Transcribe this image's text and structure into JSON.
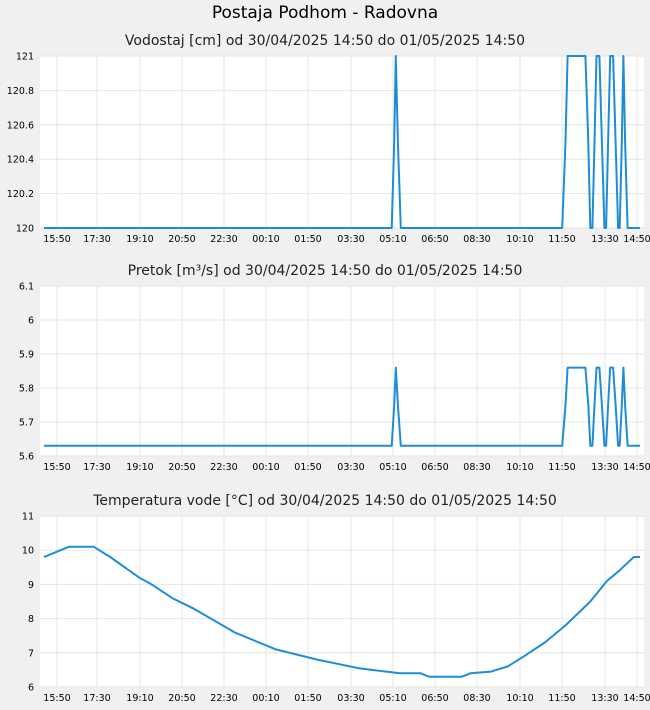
{
  "page_title": "Postaja Podhom - Radovna",
  "chart_data": [
    {
      "type": "line",
      "title": "Vodostaj [cm] od 30/04/2025 14:50 do 01/05/2025 14:50",
      "x_start": "30/04/2025 14:50",
      "x_end": "01/05/2025 14:50",
      "xticks": [
        "15:50",
        "17:30",
        "19:10",
        "20:50",
        "22:30",
        "00:10",
        "01:50",
        "03:30",
        "05:10",
        "06:50",
        "08:30",
        "10:10",
        "11:50",
        "13:30",
        "14:50"
      ],
      "yticks": [
        "120",
        "120.2",
        "120.4",
        "120.6",
        "120.8",
        "121"
      ],
      "ylim": [
        120,
        121
      ],
      "grid": true,
      "color": "#1f8dd6",
      "series": [
        {
          "points": [
            [
              "30/04/2025 14:50",
              120
            ],
            [
              "01/05/2025 04:50",
              120
            ],
            [
              "01/05/2025 04:56",
              120.5
            ],
            [
              "01/05/2025 05:00",
              121
            ],
            [
              "01/05/2025 05:05",
              120.5
            ],
            [
              "01/05/2025 05:12",
              120
            ],
            [
              "01/05/2025 11:42",
              120
            ],
            [
              "01/05/2025 11:50",
              120.5
            ],
            [
              "01/05/2025 11:55",
              121
            ],
            [
              "01/05/2025 12:38",
              121
            ],
            [
              "01/05/2025 12:45",
              120.5
            ],
            [
              "01/05/2025 12:50",
              120
            ],
            [
              "01/05/2025 12:55",
              120
            ],
            [
              "01/05/2025 13:00",
              120.5
            ],
            [
              "01/05/2025 13:05",
              121
            ],
            [
              "01/05/2025 13:12",
              121
            ],
            [
              "01/05/2025 13:18",
              120.5
            ],
            [
              "01/05/2025 13:24",
              120
            ],
            [
              "01/05/2025 13:28",
              120
            ],
            [
              "01/05/2025 13:33",
              120.5
            ],
            [
              "01/05/2025 13:38",
              121
            ],
            [
              "01/05/2025 13:45",
              121
            ],
            [
              "01/05/2025 13:51",
              120.5
            ],
            [
              "01/05/2025 13:57",
              120
            ],
            [
              "01/05/2025 14:01",
              120
            ],
            [
              "01/05/2025 14:06",
              120.5
            ],
            [
              "01/05/2025 14:10",
              121
            ],
            [
              "01/05/2025 14:14",
              120.5
            ],
            [
              "01/05/2025 14:20",
              120
            ],
            [
              "01/05/2025 14:50",
              120
            ]
          ]
        }
      ]
    },
    {
      "type": "line",
      "title": "Pretok [m³/s] od 30/04/2025 14:50 do 01/05/2025 14:50",
      "x_start": "30/04/2025 14:50",
      "x_end": "01/05/2025 14:50",
      "xticks": [
        "15:50",
        "17:30",
        "19:10",
        "20:50",
        "22:30",
        "00:10",
        "01:50",
        "03:30",
        "05:10",
        "06:50",
        "08:30",
        "10:10",
        "11:50",
        "13:30",
        "14:50"
      ],
      "yticks": [
        "5.6",
        "5.7",
        "5.8",
        "5.9",
        "6",
        "6.1"
      ],
      "ylim": [
        5.6,
        6.1
      ],
      "grid": true,
      "color": "#1f8dd6",
      "series": [
        {
          "points": [
            [
              "30/04/2025 14:50",
              5.63
            ],
            [
              "01/05/2025 04:50",
              5.63
            ],
            [
              "01/05/2025 04:56",
              5.75
            ],
            [
              "01/05/2025 05:00",
              5.86
            ],
            [
              "01/05/2025 05:05",
              5.75
            ],
            [
              "01/05/2025 05:12",
              5.63
            ],
            [
              "01/05/2025 11:42",
              5.63
            ],
            [
              "01/05/2025 11:50",
              5.75
            ],
            [
              "01/05/2025 11:55",
              5.86
            ],
            [
              "01/05/2025 12:38",
              5.86
            ],
            [
              "01/05/2025 12:45",
              5.75
            ],
            [
              "01/05/2025 12:50",
              5.63
            ],
            [
              "01/05/2025 12:55",
              5.63
            ],
            [
              "01/05/2025 13:00",
              5.75
            ],
            [
              "01/05/2025 13:05",
              5.86
            ],
            [
              "01/05/2025 13:12",
              5.86
            ],
            [
              "01/05/2025 13:18",
              5.75
            ],
            [
              "01/05/2025 13:24",
              5.63
            ],
            [
              "01/05/2025 13:28",
              5.63
            ],
            [
              "01/05/2025 13:33",
              5.75
            ],
            [
              "01/05/2025 13:38",
              5.86
            ],
            [
              "01/05/2025 13:45",
              5.86
            ],
            [
              "01/05/2025 13:51",
              5.75
            ],
            [
              "01/05/2025 13:57",
              5.63
            ],
            [
              "01/05/2025 14:01",
              5.63
            ],
            [
              "01/05/2025 14:06",
              5.75
            ],
            [
              "01/05/2025 14:10",
              5.86
            ],
            [
              "01/05/2025 14:14",
              5.75
            ],
            [
              "01/05/2025 14:20",
              5.63
            ],
            [
              "01/05/2025 14:50",
              5.63
            ]
          ]
        }
      ]
    },
    {
      "type": "line",
      "title": "Temperatura vode [°C] od 30/04/2025 14:50 do 01/05/2025 14:50",
      "x_start": "30/04/2025 14:50",
      "x_end": "01/05/2025 14:50",
      "xticks": [
        "15:50",
        "17:30",
        "19:10",
        "20:50",
        "22:30",
        "00:10",
        "01:50",
        "03:30",
        "05:10",
        "06:50",
        "08:30",
        "10:10",
        "11:50",
        "13:30",
        "14:50"
      ],
      "yticks": [
        "6",
        "7",
        "8",
        "9",
        "10",
        "11"
      ],
      "ylim": [
        6,
        11
      ],
      "grid": true,
      "color": "#1f8dd6",
      "series": [
        {
          "points": [
            [
              "30/04/2025 14:50",
              9.8
            ],
            [
              "30/04/2025 15:20",
              9.95
            ],
            [
              "30/04/2025 15:50",
              10.1
            ],
            [
              "30/04/2025 16:50",
              10.1
            ],
            [
              "30/04/2025 17:30",
              9.8
            ],
            [
              "30/04/2025 18:40",
              9.2
            ],
            [
              "30/04/2025 19:10",
              9.0
            ],
            [
              "30/04/2025 20:00",
              8.6
            ],
            [
              "30/04/2025 20:50",
              8.3
            ],
            [
              "30/04/2025 22:30",
              7.6
            ],
            [
              "01/05/2025 00:10",
              7.1
            ],
            [
              "01/05/2025 01:50",
              6.8
            ],
            [
              "01/05/2025 03:30",
              6.55
            ],
            [
              "01/05/2025 05:10",
              6.4
            ],
            [
              "01/05/2025 06:00",
              6.4
            ],
            [
              "01/05/2025 06:20",
              6.3
            ],
            [
              "01/05/2025 07:40",
              6.3
            ],
            [
              "01/05/2025 08:00",
              6.4
            ],
            [
              "01/05/2025 08:50",
              6.45
            ],
            [
              "01/05/2025 09:30",
              6.6
            ],
            [
              "01/05/2025 10:10",
              6.9
            ],
            [
              "01/05/2025 11:00",
              7.3
            ],
            [
              "01/05/2025 11:50",
              7.8
            ],
            [
              "01/05/2025 12:50",
              8.5
            ],
            [
              "01/05/2025 13:30",
              9.1
            ],
            [
              "01/05/2025 14:00",
              9.4
            ],
            [
              "01/05/2025 14:35",
              9.8
            ],
            [
              "01/05/2025 14:50",
              9.8
            ]
          ]
        }
      ]
    }
  ]
}
